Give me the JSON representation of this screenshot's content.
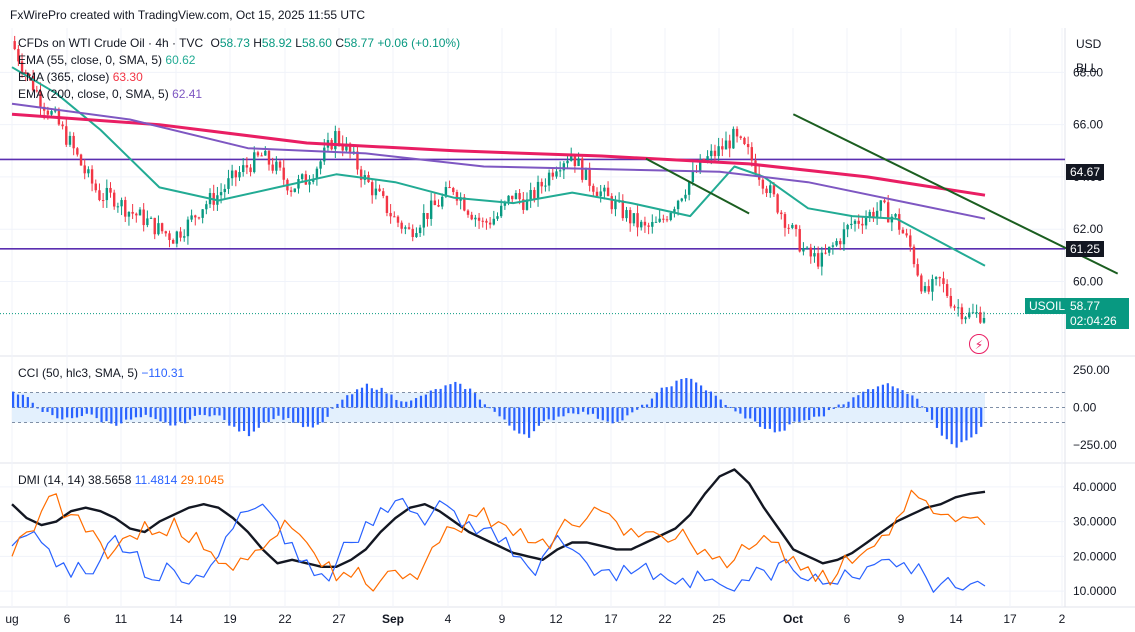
{
  "credit": "FxWirePro created with TradingView.com, Oct 15, 2025 11:55 UTC",
  "symbol_line": {
    "name": "CFDs on WTI Crude Oil · 4h · TVC",
    "open_label": "O",
    "open": "58.73",
    "high_label": "H",
    "high": "58.92",
    "low_label": "L",
    "low": "58.60",
    "close_label": "C",
    "close": "58.77",
    "change": "+0.06 (+0.10%)"
  },
  "indicators": {
    "ema55": {
      "label": "EMA (55, close, 0, SMA, 5)",
      "value": "60.62",
      "color": "#22ab94"
    },
    "ema365": {
      "label": "EMA (365, close)",
      "value": "63.30",
      "color": "#e91e63"
    },
    "ema200": {
      "label": "EMA (200, close, 0, SMA, 5)",
      "value": "62.41",
      "color": "#7e57c2"
    }
  },
  "price_axis": {
    "currency": "USD",
    "unit": "BLL"
  },
  "price_tags": {
    "symbol": "USOIL",
    "last": "58.77",
    "countdown": "02:04:26",
    "level_high": "64.67",
    "level_low": "61.25"
  },
  "cci": {
    "label": "CCI (50, hlc3, SMA, 5)",
    "value": "−110.31"
  },
  "dmi": {
    "label": "DMI (14, 14)",
    "adx": "38.5658",
    "minus_di": "11.4814",
    "plus_di": "29.1045"
  },
  "chart_data": [
    {
      "type": "candlestick",
      "title": "CFDs on WTI Crude Oil · 4h · TVC",
      "x_ticks": [
        "ug",
        "6",
        "11",
        "14",
        "19",
        "22",
        "27",
        "Sep",
        "4",
        "9",
        "12",
        "17",
        "22",
        "25",
        "Oct",
        "6",
        "9",
        "14",
        "17",
        "2"
      ],
      "y_ticks": [
        "68.00",
        "66.00",
        "64.00",
        "62.00",
        "60.00"
      ],
      "ylim": [
        57.3,
        69.7
      ],
      "horizontal_levels": [
        64.67,
        61.25
      ],
      "last_price": 58.77,
      "close_path": [
        [
          0,
          69.2
        ],
        [
          1,
          68.0
        ],
        [
          2,
          67.0
        ],
        [
          3,
          66.2
        ],
        [
          4,
          65.3
        ],
        [
          5,
          64.2
        ],
        [
          6,
          63.3
        ],
        [
          7,
          63.2
        ],
        [
          8,
          62.7
        ],
        [
          9,
          62.4
        ],
        [
          10,
          62.0
        ],
        [
          11,
          61.7
        ],
        [
          12,
          62.2
        ],
        [
          13,
          62.9
        ],
        [
          14,
          63.3
        ],
        [
          15,
          63.9
        ],
        [
          16,
          64.4
        ],
        [
          17,
          64.8
        ],
        [
          18,
          64.3
        ],
        [
          19,
          63.6
        ],
        [
          20,
          63.9
        ],
        [
          21,
          64.6
        ],
        [
          22,
          65.6
        ],
        [
          23,
          64.9
        ],
        [
          24,
          63.9
        ],
        [
          25,
          63.2
        ],
        [
          26,
          62.4
        ],
        [
          27,
          61.9
        ],
        [
          28,
          62.5
        ],
        [
          29,
          63.0
        ],
        [
          30,
          63.6
        ],
        [
          31,
          62.8
        ],
        [
          32,
          62.2
        ],
        [
          33,
          62.5
        ],
        [
          34,
          63.3
        ],
        [
          35,
          63.0
        ],
        [
          36,
          63.7
        ],
        [
          37,
          64.5
        ],
        [
          38,
          64.9
        ],
        [
          39,
          64.0
        ],
        [
          40,
          63.4
        ],
        [
          41,
          62.9
        ],
        [
          42,
          62.4
        ],
        [
          43,
          62.0
        ],
        [
          44,
          62.2
        ],
        [
          45,
          63.0
        ],
        [
          46,
          63.8
        ],
        [
          47,
          64.6
        ],
        [
          48,
          65.0
        ],
        [
          49,
          65.5
        ],
        [
          50,
          64.9
        ],
        [
          51,
          63.9
        ],
        [
          52,
          62.9
        ],
        [
          53,
          61.9
        ],
        [
          54,
          61.0
        ],
        [
          55,
          60.8
        ],
        [
          56,
          61.5
        ],
        [
          57,
          62.2
        ],
        [
          58,
          62.5
        ],
        [
          59,
          62.8
        ],
        [
          60,
          62.4
        ],
        [
          61,
          61.3
        ],
        [
          62,
          59.5
        ],
        [
          63,
          60.0
        ],
        [
          64,
          59.1
        ],
        [
          65,
          58.7
        ],
        [
          66,
          58.77
        ]
      ],
      "series": [
        {
          "name": "EMA (55, close, 0, SMA, 5)",
          "end_value": 60.62,
          "color": "#22ab94",
          "path": [
            [
              0,
              68.2
            ],
            [
              3,
              67.2
            ],
            [
              6,
              65.8
            ],
            [
              10,
              63.6
            ],
            [
              14,
              63.1
            ],
            [
              18,
              63.6
            ],
            [
              22,
              64.1
            ],
            [
              26,
              63.8
            ],
            [
              30,
              63.2
            ],
            [
              34,
              63.0
            ],
            [
              38,
              63.4
            ],
            [
              42,
              63.0
            ],
            [
              46,
              62.5
            ],
            [
              49,
              64.4
            ],
            [
              51,
              64.0
            ],
            [
              54,
              62.8
            ],
            [
              57,
              62.5
            ],
            [
              60,
              62.4
            ],
            [
              63,
              61.5
            ],
            [
              66,
              60.6
            ]
          ]
        },
        {
          "name": "EMA (365, close)",
          "end_value": 63.3,
          "color": "#e91e63",
          "path": [
            [
              0,
              66.4
            ],
            [
              10,
              66.0
            ],
            [
              20,
              65.3
            ],
            [
              30,
              65.0
            ],
            [
              40,
              64.8
            ],
            [
              50,
              64.5
            ],
            [
              58,
              64.0
            ],
            [
              66,
              63.3
            ]
          ]
        },
        {
          "name": "EMA (200, close, 0, SMA, 5)",
          "end_value": 62.41,
          "color": "#7e57c2",
          "path": [
            [
              0,
              66.8
            ],
            [
              8,
              66.2
            ],
            [
              16,
              65.1
            ],
            [
              24,
              64.9
            ],
            [
              32,
              64.4
            ],
            [
              40,
              64.3
            ],
            [
              48,
              64.2
            ],
            [
              54,
              63.8
            ],
            [
              60,
              63.1
            ],
            [
              66,
              62.4
            ]
          ]
        }
      ],
      "trendlines": [
        {
          "from": [
            43,
            64.7
          ],
          "to": [
            50,
            62.6
          ],
          "color": "#1b5e20"
        },
        {
          "from": [
            53,
            66.4
          ],
          "to": [
            75,
            60.3
          ],
          "color": "#1b5e20"
        }
      ]
    },
    {
      "type": "bar",
      "title": "CCI (50, hlc3, SMA, 5)",
      "y_ticks": [
        "250.00",
        "0.00",
        "−250.00"
      ],
      "ylim": [
        -350,
        330
      ],
      "band": [
        100,
        -100
      ],
      "last_value": -110.31,
      "values": [
        100,
        60,
        -20,
        -80,
        -70,
        -40,
        -90,
        -110,
        -80,
        -60,
        -100,
        -120,
        -80,
        -40,
        -60,
        -140,
        -180,
        -100,
        -60,
        -90,
        -140,
        -110,
        30,
        90,
        150,
        120,
        60,
        40,
        90,
        130,
        160,
        120,
        30,
        -60,
        -150,
        -190,
        -100,
        -60,
        -30,
        -40,
        -80,
        -100,
        -40,
        30,
        120,
        170,
        200,
        120,
        50,
        -30,
        -80,
        -140,
        -170,
        -100,
        -80,
        -50,
        20,
        60,
        120,
        160,
        140,
        80,
        -20,
        -180,
        -260,
        -200,
        -110
      ]
    },
    {
      "type": "line",
      "title": "DMI (14, 14)",
      "y_ticks": [
        "40.0000",
        "30.0000",
        "20.0000",
        "10.0000"
      ],
      "ylim": [
        6,
        46
      ],
      "series": [
        {
          "name": "ADX",
          "end_value": 38.5658,
          "color": "#131722",
          "values": [
            35,
            31,
            29,
            30,
            33,
            34,
            33,
            31,
            28,
            27,
            30,
            32,
            34,
            35,
            34,
            31,
            27,
            22,
            18,
            19,
            18,
            17,
            17,
            19,
            22,
            27,
            31,
            34,
            35,
            33,
            30,
            27,
            25,
            23,
            21,
            20,
            19,
            22,
            24,
            24,
            23,
            22,
            22,
            24,
            26,
            28,
            32,
            38,
            43,
            45,
            41,
            34,
            28,
            22,
            20,
            18,
            19,
            21,
            24,
            27,
            30,
            32,
            34,
            35,
            37,
            38,
            38.5658
          ]
        },
        {
          "name": "-DI",
          "end_value": 11.4814,
          "color": "#2962ff",
          "values": [
            23,
            26,
            24,
            17,
            14,
            15,
            19,
            26,
            21,
            14,
            13,
            16,
            12,
            14,
            20,
            28,
            33,
            35,
            30,
            24,
            19,
            15,
            18,
            24,
            30,
            34,
            36,
            33,
            29,
            36,
            33,
            30,
            28,
            24,
            20,
            17,
            20,
            26,
            22,
            18,
            16,
            13,
            15,
            18,
            15,
            12,
            11,
            13,
            12,
            10,
            13,
            16,
            18,
            16,
            13,
            12,
            12,
            14,
            17,
            19,
            17,
            15,
            14,
            12,
            11,
            12,
            11.4814
          ]
        },
        {
          "name": "+DI",
          "end_value": 29.1045,
          "color": "#ff6d00",
          "values": [
            20,
            27,
            33,
            38,
            32,
            27,
            24,
            22,
            26,
            30,
            27,
            31,
            24,
            22,
            18,
            16,
            19,
            22,
            26,
            28,
            24,
            17,
            13,
            14,
            12,
            13,
            16,
            15,
            18,
            24,
            28,
            32,
            34,
            30,
            26,
            24,
            25,
            27,
            29,
            31,
            33,
            30,
            28,
            27,
            26,
            25,
            24,
            22,
            20,
            19,
            22,
            26,
            24,
            20,
            17,
            16,
            15,
            18,
            22,
            26,
            31,
            39,
            36,
            32,
            30,
            31,
            29.1045
          ]
        }
      ]
    }
  ]
}
